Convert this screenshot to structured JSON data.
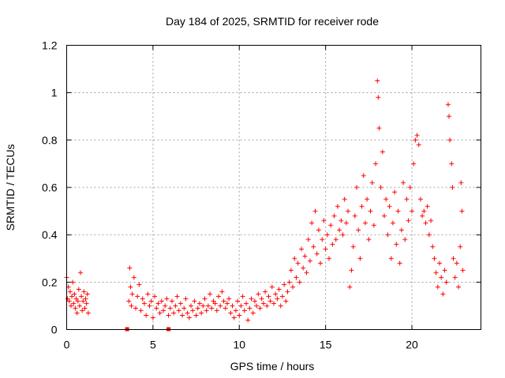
{
  "chart_data": {
    "type": "scatter",
    "title": "Day 184 of 2025, SRMTID for receiver rode",
    "xlabel": "GPS time / hours",
    "ylabel": "SRMTID / TECUs",
    "xlim": [
      0,
      24
    ],
    "ylim": [
      0,
      1.2
    ],
    "xticks": [
      0,
      5,
      10,
      15,
      20
    ],
    "xtick_labels": [
      "0",
      "5",
      "10",
      "15",
      "20"
    ],
    "yticks": [
      0,
      0.2,
      0.4,
      0.6,
      0.8,
      1.0,
      1.2
    ],
    "ytick_labels": [
      "0",
      "0.2",
      "0.4",
      "0.6",
      "0.8",
      "1",
      "1.2"
    ],
    "grid": true,
    "marker": "plus",
    "series": [
      {
        "name": "SRMTID",
        "color": "#ff0000",
        "points": [
          [
            0.0,
            0.22
          ],
          [
            0.05,
            0.13
          ],
          [
            0.1,
            0.18
          ],
          [
            0.15,
            0.12
          ],
          [
            0.2,
            0.16
          ],
          [
            0.25,
            0.1
          ],
          [
            0.3,
            0.14
          ],
          [
            0.35,
            0.2
          ],
          [
            0.4,
            0.11
          ],
          [
            0.45,
            0.15
          ],
          [
            0.5,
            0.09
          ],
          [
            0.55,
            0.13
          ],
          [
            0.6,
            0.07
          ],
          [
            0.65,
            0.12
          ],
          [
            0.7,
            0.17
          ],
          [
            0.75,
            0.1
          ],
          [
            0.8,
            0.24
          ],
          [
            0.85,
            0.14
          ],
          [
            0.9,
            0.08
          ],
          [
            0.95,
            0.12
          ],
          [
            1.0,
            0.16
          ],
          [
            1.05,
            0.09
          ],
          [
            1.1,
            0.13
          ],
          [
            1.15,
            0.11
          ],
          [
            1.2,
            0.15
          ],
          [
            1.25,
            0.07
          ],
          [
            3.5,
            0.0
          ],
          [
            5.9,
            0.0
          ],
          [
            3.6,
            0.12
          ],
          [
            3.65,
            0.26
          ],
          [
            3.7,
            0.18
          ],
          [
            3.75,
            0.1
          ],
          [
            3.8,
            0.15
          ],
          [
            3.9,
            0.22
          ],
          [
            4.0,
            0.09
          ],
          [
            4.1,
            0.14
          ],
          [
            4.2,
            0.19
          ],
          [
            4.3,
            0.08
          ],
          [
            4.4,
            0.13
          ],
          [
            4.5,
            0.11
          ],
          [
            4.6,
            0.06
          ],
          [
            4.7,
            0.15
          ],
          [
            4.8,
            0.1
          ],
          [
            4.9,
            0.12
          ],
          [
            5.0,
            0.05
          ],
          [
            5.1,
            0.14
          ],
          [
            5.2,
            0.09
          ],
          [
            5.3,
            0.11
          ],
          [
            5.4,
            0.07
          ],
          [
            5.5,
            0.12
          ],
          [
            5.6,
            0.08
          ],
          [
            5.7,
            0.1
          ],
          [
            5.8,
            0.13
          ],
          [
            5.9,
            0.06
          ],
          [
            6.0,
            0.09
          ],
          [
            6.1,
            0.12
          ],
          [
            6.2,
            0.07
          ],
          [
            6.3,
            0.1
          ],
          [
            6.4,
            0.14
          ],
          [
            6.5,
            0.08
          ],
          [
            6.6,
            0.11
          ],
          [
            6.7,
            0.06
          ],
          [
            6.8,
            0.09
          ],
          [
            6.9,
            0.13
          ],
          [
            7.0,
            0.07
          ],
          [
            7.1,
            0.05
          ],
          [
            7.2,
            0.1
          ],
          [
            7.3,
            0.08
          ],
          [
            7.4,
            0.12
          ],
          [
            7.5,
            0.06
          ],
          [
            7.6,
            0.09
          ],
          [
            7.7,
            0.11
          ],
          [
            7.8,
            0.07
          ],
          [
            7.9,
            0.1
          ],
          [
            8.0,
            0.13
          ],
          [
            8.1,
            0.08
          ],
          [
            8.2,
            0.1
          ],
          [
            8.3,
            0.15
          ],
          [
            8.4,
            0.09
          ],
          [
            8.5,
            0.12
          ],
          [
            8.6,
            0.11
          ],
          [
            8.7,
            0.08
          ],
          [
            8.8,
            0.14
          ],
          [
            8.9,
            0.1
          ],
          [
            9.0,
            0.16
          ],
          [
            9.1,
            0.12
          ],
          [
            9.2,
            0.09
          ],
          [
            9.3,
            0.11
          ],
          [
            9.4,
            0.13
          ],
          [
            9.5,
            0.07
          ],
          [
            9.6,
            0.1
          ],
          [
            9.7,
            0.05
          ],
          [
            9.8,
            0.08
          ],
          [
            9.9,
            0.12
          ],
          [
            10.0,
            0.06
          ],
          [
            10.1,
            0.1
          ],
          [
            10.2,
            0.14
          ],
          [
            10.3,
            0.08
          ],
          [
            10.4,
            0.11
          ],
          [
            10.5,
            0.04
          ],
          [
            10.6,
            0.09
          ],
          [
            10.7,
            0.13
          ],
          [
            10.8,
            0.07
          ],
          [
            10.9,
            0.12
          ],
          [
            11.0,
            0.1
          ],
          [
            11.1,
            0.15
          ],
          [
            11.2,
            0.09
          ],
          [
            11.3,
            0.13
          ],
          [
            11.4,
            0.11
          ],
          [
            11.5,
            0.16
          ],
          [
            11.6,
            0.1
          ],
          [
            11.7,
            0.14
          ],
          [
            11.8,
            0.12
          ],
          [
            11.9,
            0.18
          ],
          [
            12.0,
            0.11
          ],
          [
            12.1,
            0.15
          ],
          [
            12.2,
            0.13
          ],
          [
            12.3,
            0.17
          ],
          [
            12.4,
            0.1
          ],
          [
            12.5,
            0.14
          ],
          [
            12.6,
            0.19
          ],
          [
            12.7,
            0.12
          ],
          [
            12.8,
            0.16
          ],
          [
            12.9,
            0.2
          ],
          [
            13.0,
            0.25
          ],
          [
            13.1,
            0.18
          ],
          [
            13.2,
            0.3
          ],
          [
            13.3,
            0.22
          ],
          [
            13.4,
            0.28
          ],
          [
            13.5,
            0.2
          ],
          [
            13.6,
            0.34
          ],
          [
            13.7,
            0.26
          ],
          [
            13.8,
            0.31
          ],
          [
            13.9,
            0.24
          ],
          [
            14.0,
            0.38
          ],
          [
            14.1,
            0.29
          ],
          [
            14.2,
            0.45
          ],
          [
            14.3,
            0.35
          ],
          [
            14.4,
            0.5
          ],
          [
            14.5,
            0.32
          ],
          [
            14.6,
            0.42
          ],
          [
            14.7,
            0.28
          ],
          [
            14.8,
            0.38
          ],
          [
            14.9,
            0.46
          ],
          [
            15.0,
            0.34
          ],
          [
            15.1,
            0.4
          ],
          [
            15.2,
            0.3
          ],
          [
            15.3,
            0.44
          ],
          [
            15.4,
            0.36
          ],
          [
            15.5,
            0.48
          ],
          [
            15.6,
            0.38
          ],
          [
            15.7,
            0.52
          ],
          [
            15.8,
            0.42
          ],
          [
            15.9,
            0.46
          ],
          [
            16.0,
            0.4
          ],
          [
            16.1,
            0.55
          ],
          [
            16.2,
            0.45
          ],
          [
            16.3,
            0.5
          ],
          [
            16.4,
            0.18
          ],
          [
            16.5,
            0.25
          ],
          [
            16.6,
            0.35
          ],
          [
            16.7,
            0.48
          ],
          [
            16.8,
            0.6
          ],
          [
            16.9,
            0.42
          ],
          [
            17.0,
            0.3
          ],
          [
            17.1,
            0.52
          ],
          [
            17.2,
            0.65
          ],
          [
            17.3,
            0.45
          ],
          [
            17.4,
            0.55
          ],
          [
            17.5,
            0.38
          ],
          [
            17.6,
            0.5
          ],
          [
            17.7,
            0.62
          ],
          [
            17.8,
            0.44
          ],
          [
            17.9,
            0.7
          ],
          [
            18.0,
            1.05
          ],
          [
            18.05,
            0.98
          ],
          [
            18.1,
            0.85
          ],
          [
            18.2,
            0.6
          ],
          [
            18.3,
            0.75
          ],
          [
            18.4,
            0.48
          ],
          [
            18.5,
            0.55
          ],
          [
            18.6,
            0.4
          ],
          [
            18.7,
            0.52
          ],
          [
            18.8,
            0.3
          ],
          [
            18.9,
            0.45
          ],
          [
            19.0,
            0.58
          ],
          [
            19.1,
            0.36
          ],
          [
            19.2,
            0.5
          ],
          [
            19.3,
            0.28
          ],
          [
            19.4,
            0.42
          ],
          [
            19.5,
            0.62
          ],
          [
            19.6,
            0.38
          ],
          [
            19.7,
            0.55
          ],
          [
            19.8,
            0.46
          ],
          [
            19.9,
            0.6
          ],
          [
            20.0,
            0.5
          ],
          [
            20.1,
            0.7
          ],
          [
            20.2,
            0.8
          ],
          [
            20.3,
            0.82
          ],
          [
            20.4,
            0.78
          ],
          [
            20.5,
            0.55
          ],
          [
            20.6,
            0.48
          ],
          [
            20.7,
            0.5
          ],
          [
            20.8,
            0.45
          ],
          [
            20.9,
            0.52
          ],
          [
            21.0,
            0.4
          ],
          [
            21.1,
            0.46
          ],
          [
            21.2,
            0.35
          ],
          [
            21.3,
            0.3
          ],
          [
            21.4,
            0.24
          ],
          [
            21.5,
            0.18
          ],
          [
            21.6,
            0.28
          ],
          [
            21.7,
            0.22
          ],
          [
            21.8,
            0.15
          ],
          [
            21.9,
            0.25
          ],
          [
            22.0,
            0.2
          ],
          [
            22.1,
            0.95
          ],
          [
            22.15,
            0.9
          ],
          [
            22.2,
            0.8
          ],
          [
            22.3,
            0.7
          ],
          [
            22.35,
            0.6
          ],
          [
            22.4,
            0.3
          ],
          [
            22.5,
            0.22
          ],
          [
            22.6,
            0.28
          ],
          [
            22.7,
            0.18
          ],
          [
            22.8,
            0.35
          ],
          [
            22.85,
            0.62
          ],
          [
            22.9,
            0.5
          ],
          [
            22.95,
            0.25
          ]
        ]
      }
    ]
  }
}
